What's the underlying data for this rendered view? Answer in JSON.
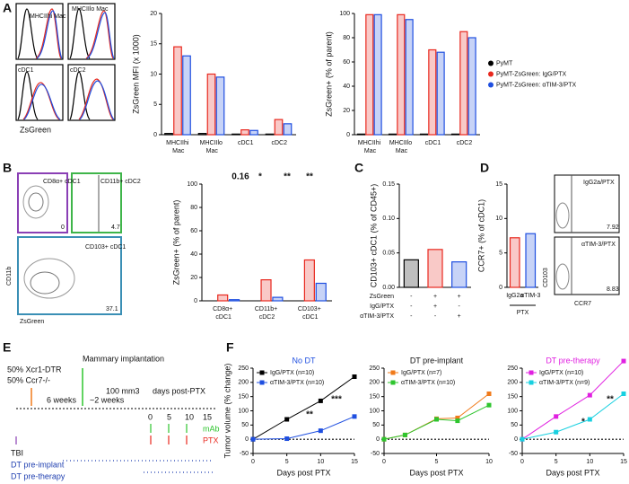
{
  "panels": {
    "letters": [
      "A",
      "B",
      "C",
      "D",
      "E",
      "F"
    ]
  },
  "flow": {
    "a_labels": [
      "MHCIIhi Mac",
      "MHCIIlo Mac",
      "cDC1",
      "cDC2"
    ],
    "a_xlabel": "ZsGreen",
    "b_gates": [
      "CD8α+ cDC1",
      "CD11b+ cDC2",
      "CD103+ cDC1"
    ],
    "b_freqs": [
      "0",
      "4.7",
      "37.1"
    ],
    "b_ylabel": "CD11b",
    "b_xlabel": "ZsGreen",
    "d_labels": [
      "IgG2a/PTX",
      "αTIM-3/PTX"
    ],
    "d_freqs": [
      "7.92",
      "8.83"
    ],
    "d_ylabel": "CD103",
    "d_xlabel": "CCR7"
  },
  "diagram": {
    "mix": [
      "50% Xcr1-DTR",
      "50% Ccr7-/-"
    ],
    "implant": "Mammary implantation",
    "gap1": "6 weeks",
    "gap2": "~2 weeks",
    "size": "100 mm3",
    "days": "days post-PTX",
    "day_ticks": [
      "0",
      "5",
      "10",
      "15"
    ],
    "mab": "mAb",
    "ptx": "PTX",
    "tbi": "TBI",
    "dt": [
      "DT pre-implant",
      "DT pre-therapy"
    ]
  },
  "chart_data": [
    {
      "type": "bar",
      "ylabel": "ZsGreen MFI (x 1000)",
      "categories": [
        "MHCIIhi Mac",
        "MHCIIlo Mac",
        "cDC1",
        "cDC2"
      ],
      "series": [
        {
          "color": "#000000",
          "values": [
            0.2,
            0.2,
            0.1,
            0.1
          ]
        },
        {
          "color": "#e8281e",
          "values": [
            14.5,
            10,
            0.8,
            2.5
          ]
        },
        {
          "color": "#1f4fe0",
          "values": [
            13,
            9.5,
            0.7,
            1.8
          ]
        }
      ],
      "ylim": [
        0,
        20
      ],
      "yticks": [
        0,
        5,
        10,
        15,
        20
      ]
    },
    {
      "type": "bar",
      "ylabel": "ZsGreen+ (% of parent)",
      "categories": [
        "MHCIIhi Mac",
        "MHCIIlo Mac",
        "cDC1",
        "cDC2"
      ],
      "series": [
        {
          "name": "PyMT",
          "color": "#000000",
          "values": [
            0.5,
            0.5,
            0.5,
            0.5
          ]
        },
        {
          "name": "PyMT-ZsGreen: IgG/PTX",
          "color": "#e8281e",
          "values": [
            99,
            99,
            70,
            85
          ]
        },
        {
          "name": "PyMT-ZsGreen: αTIM-3/PTX",
          "color": "#1f4fe0",
          "values": [
            99,
            95,
            68,
            80
          ]
        }
      ],
      "ylim": [
        0,
        100
      ],
      "yticks": [
        0,
        20,
        40,
        60,
        80,
        100
      ],
      "legend": "right"
    },
    {
      "type": "bar",
      "ylabel": "ZsGreen+ (% of parent)",
      "categories": [
        "CD8α+ cDC1",
        "CD11b+ cDC2",
        "CD103+ cDC1"
      ],
      "series": [
        {
          "color": "#000000",
          "values": [
            0,
            0,
            0
          ]
        },
        {
          "color": "#e8281e",
          "values": [
            5,
            18,
            35
          ]
        },
        {
          "color": "#1f4fe0",
          "values": [
            1,
            3,
            15
          ]
        }
      ],
      "ylim": [
        0,
        100
      ],
      "yticks": [
        0,
        20,
        40,
        60,
        80,
        100
      ],
      "annotations": [
        "0.16",
        "*",
        "**",
        "**"
      ]
    },
    {
      "type": "bar",
      "ylabel": "CD103+ cDC1 (% of CD45+)",
      "categories": [
        null,
        null,
        null
      ],
      "values": [
        0.04,
        0.055,
        0.037
      ],
      "colors": [
        "#000000",
        "#e8281e",
        "#1f4fe0"
      ],
      "ylim": [
        0,
        0.15
      ],
      "yticks": [
        {
          "value": 0,
          "label": "0.00"
        },
        {
          "value": 0.05,
          "label": "0.05"
        },
        {
          "value": 0.1,
          "label": "0.10"
        },
        {
          "value": 0.15,
          "label": "0.15"
        }
      ],
      "table": [
        [
          "ZsGreen",
          "-",
          "+",
          "+"
        ],
        [
          "IgG/PTX",
          "-",
          "+",
          "-"
        ],
        [
          "αTIM-3/PTX",
          "-",
          "-",
          "+"
        ]
      ]
    },
    {
      "type": "bar",
      "ylabel": "CCR7+ (% of cDC1)",
      "xlabel": "PTX",
      "categories": [
        "IgG2a",
        "αTIM-3"
      ],
      "values": [
        7.2,
        7.8
      ],
      "colors": [
        "#e8281e",
        "#1f4fe0"
      ],
      "ylim": [
        0,
        15
      ],
      "yticks": [
        0,
        5,
        10,
        15
      ]
    },
    {
      "type": "line",
      "title": "No DT",
      "title_color": "#1f4fe0",
      "xlabel": "Days post PTX",
      "ylabel": "Tumor volume (% change)",
      "x": [
        0,
        5,
        10,
        15
      ],
      "xlim": [
        0,
        15
      ],
      "xticks": [
        0,
        5,
        10,
        15
      ],
      "ylim": [
        -50,
        250
      ],
      "yticks": [
        -50,
        0,
        50,
        100,
        150,
        200,
        250
      ],
      "series": [
        {
          "name": "IgG/PTX (n=10)",
          "color": "#000000",
          "values": [
            0,
            70,
            135,
            220
          ]
        },
        {
          "name": "αTIM-3/PTX (n=10)",
          "color": "#1f4fe0",
          "values": [
            0,
            2,
            30,
            80
          ]
        }
      ],
      "annotations": [
        "**",
        "***"
      ]
    },
    {
      "type": "line",
      "title": "DT pre-implant",
      "title_color": "#111111",
      "xlabel": "Days post PTX",
      "x": [
        0,
        2,
        5,
        7,
        10
      ],
      "xlim": [
        0,
        10
      ],
      "xticks": [
        0,
        5,
        10
      ],
      "ylim": [
        -50,
        250
      ],
      "yticks": [
        -50,
        0,
        50,
        100,
        150,
        200,
        250
      ],
      "series": [
        {
          "name": "IgG/PTX (n=7)",
          "color": "#f07a1a",
          "values": [
            0,
            15,
            72,
            75,
            160
          ]
        },
        {
          "name": "αTIM-3/PTX (n=10)",
          "color": "#2ec52e",
          "values": [
            0,
            15,
            70,
            65,
            120
          ]
        }
      ]
    },
    {
      "type": "line",
      "title": "DT pre-therapy",
      "title_color": "#e020e0",
      "xlabel": "Days post PTX",
      "x": [
        0,
        5,
        10,
        15
      ],
      "xlim": [
        0,
        15
      ],
      "xticks": [
        0,
        5,
        10,
        15
      ],
      "ylim": [
        -50,
        250
      ],
      "yticks": [
        -50,
        0,
        50,
        100,
        150,
        200,
        250
      ],
      "series": [
        {
          "name": "IgG/PTX (n=10)",
          "color": "#e020e0",
          "values": [
            0,
            80,
            155,
            275
          ]
        },
        {
          "name": "αTIM-3/PTX (n=9)",
          "color": "#18d0e0",
          "values": [
            0,
            25,
            70,
            160
          ]
        }
      ],
      "annotations": [
        "*",
        "**"
      ]
    }
  ]
}
